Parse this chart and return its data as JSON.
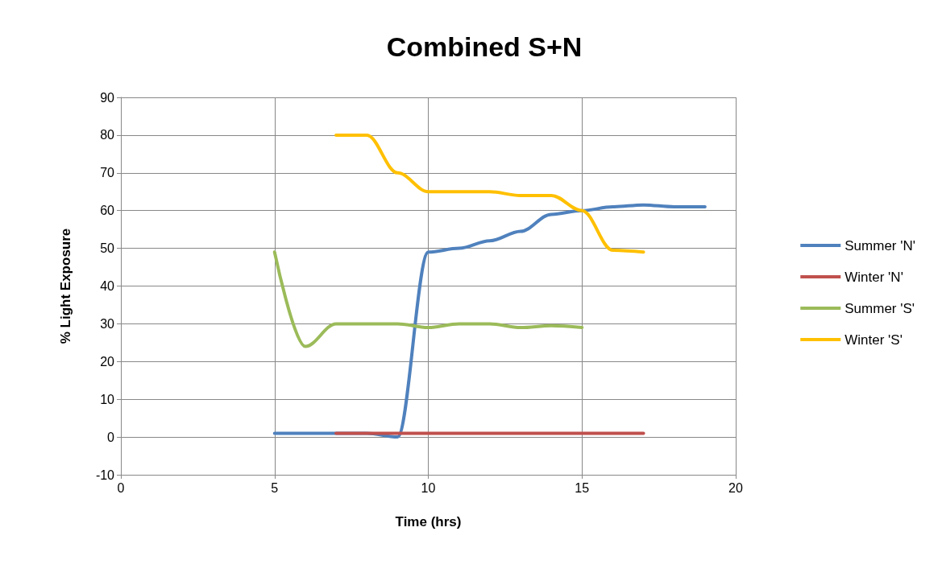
{
  "chart_data": {
    "type": "line",
    "title": "Combined S+N",
    "xlabel": "Time (hrs)",
    "ylabel": "% Light Exposure",
    "xlim": [
      0,
      20
    ],
    "xticks": [
      0,
      5,
      10,
      15,
      20
    ],
    "ylim": [
      -10,
      90
    ],
    "yticks": [
      -10,
      0,
      10,
      20,
      30,
      40,
      50,
      60,
      70,
      80,
      90
    ],
    "grid": true,
    "legend": "right",
    "marker": "none",
    "line_style": "solid",
    "series": [
      {
        "name": "Summer 'N'",
        "color": "#4f81bd",
        "x": [
          5,
          6,
          7,
          8,
          9,
          10,
          11,
          12,
          13,
          14,
          15,
          16,
          17,
          18,
          19
        ],
        "values": [
          1,
          1,
          1,
          1,
          0,
          49,
          50,
          52,
          54.5,
          59,
          60,
          61,
          61.5,
          61,
          61
        ]
      },
      {
        "name": "Winter 'N'",
        "color": "#c0504d",
        "x": [
          7,
          8,
          9,
          10,
          11,
          12,
          13,
          14,
          15,
          16,
          17
        ],
        "values": [
          1,
          1,
          1,
          1,
          1,
          1,
          1,
          1,
          1,
          1,
          1
        ]
      },
      {
        "name": "Summer 'S'",
        "color": "#9bbb59",
        "x": [
          5,
          6,
          7,
          8,
          9,
          10,
          11,
          12,
          13,
          14,
          15
        ],
        "values": [
          49,
          24,
          30,
          30,
          30,
          29,
          30,
          30,
          29,
          29.5,
          29
        ]
      },
      {
        "name": "Winter 'S'",
        "color": "#ffc000",
        "x": [
          7,
          8,
          9,
          10,
          11,
          12,
          13,
          14,
          15,
          16,
          17
        ],
        "values": [
          80,
          80,
          70,
          65,
          65,
          65,
          64,
          64,
          60,
          49.5,
          49
        ]
      }
    ]
  }
}
